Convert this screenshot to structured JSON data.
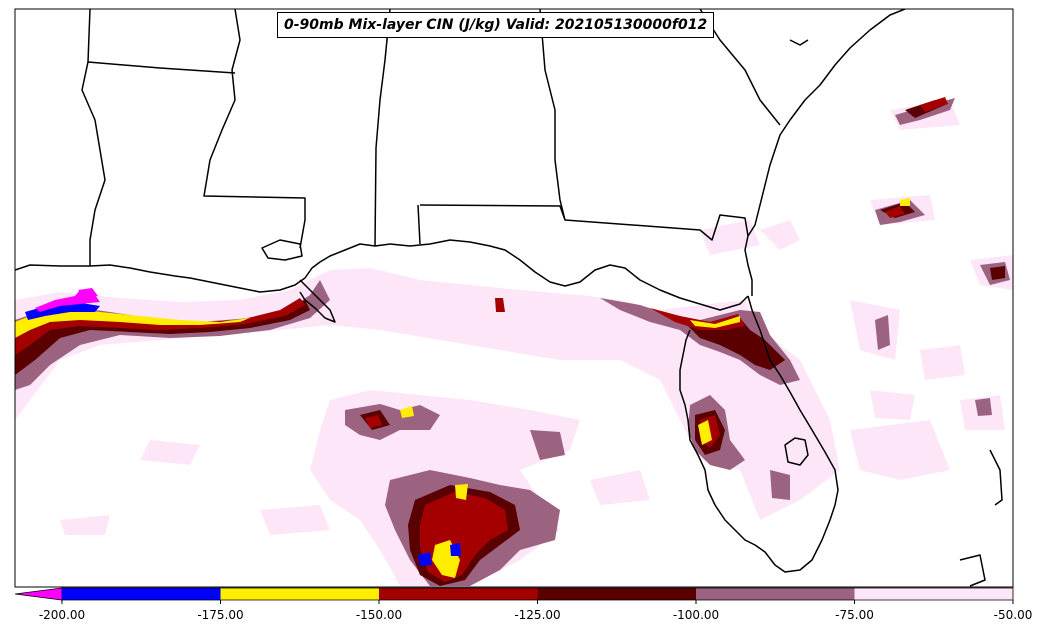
{
  "title": "0-90mb Mix-layer CIN (J/kg) Valid: 202105130000f012",
  "colorbar": {
    "ticks": [
      "-200.00",
      "-175.00",
      "-150.00",
      "-125.00",
      "-100.00",
      "-75.00",
      "-50.00"
    ],
    "extend_color": "#ff00ff",
    "colors": [
      "#0000ff",
      "#ffee00",
      "#a50000",
      "#5a0000",
      "#9b6380",
      "#fde6f8"
    ]
  },
  "map": {
    "region": "Gulf of Mexico / US Gulf Coast / Florida",
    "field_colors": {
      "light": "#fde6f8",
      "mauve": "#9b6380",
      "darkred": "#5a0000",
      "red": "#a50000",
      "yellow": "#ffee00",
      "blue": "#0000ff",
      "magenta": "#ff00ff"
    }
  }
}
